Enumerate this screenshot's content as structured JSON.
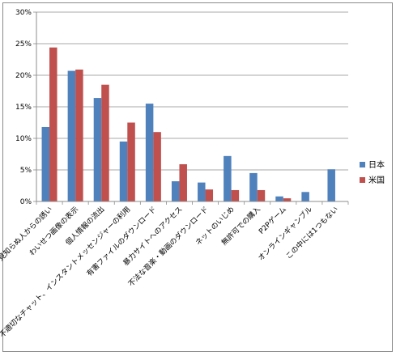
{
  "chart_data": {
    "type": "bar",
    "categories": [
      "見知らぬ人からの誘い",
      "わいせつ画像の表示",
      "個人情報の流出",
      "不適切なチャット、インスタントメッセンジャーの利用",
      "有害ファイルのダウンロード",
      "暴力サイトへのアクセス",
      "不法な音楽・動画のダウンロード",
      "ネットのいじめ",
      "無許可での購入",
      "P2Pゲーム",
      "オンラインギャンブル",
      "この中には1つもない"
    ],
    "series": [
      {
        "name": "日本",
        "color": "#4f81bd",
        "values": [
          11.8,
          20.7,
          16.4,
          9.5,
          15.5,
          3.2,
          3.0,
          7.2,
          4.5,
          0.8,
          1.5,
          5.1
        ]
      },
      {
        "name": "米国",
        "color": "#c0504d",
        "values": [
          24.4,
          20.9,
          18.5,
          12.5,
          11.0,
          5.9,
          1.9,
          1.8,
          1.8,
          0.5,
          null,
          null
        ]
      }
    ],
    "yticks": [
      "0%",
      "5%",
      "10%",
      "15%",
      "20%",
      "25%",
      "30%"
    ],
    "ylim": [
      0,
      30
    ],
    "grid": true,
    "legend": "right"
  }
}
